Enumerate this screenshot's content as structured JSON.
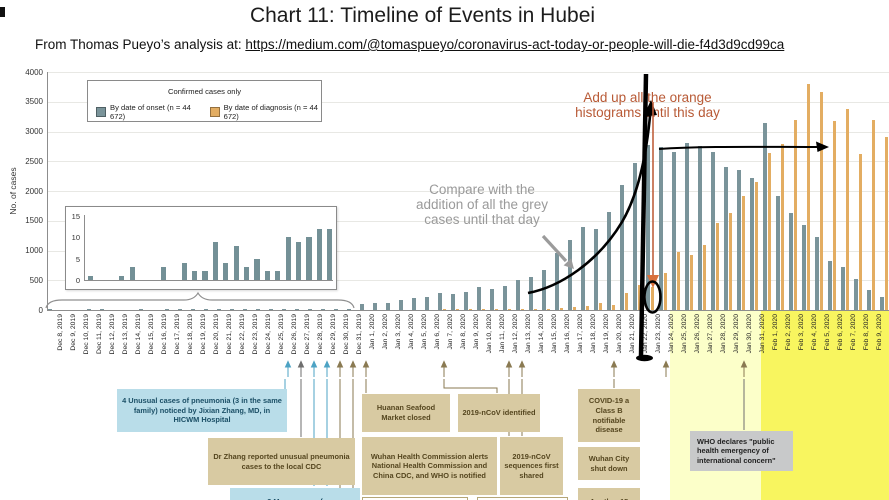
{
  "header": {
    "title": "Chart 11: Timeline of Events in Hubei",
    "subtitle_prefix": "From Thomas Pueyo’s analysis at: ",
    "link": "https://medium.com/@tomaspueyo/coronavirus-act-today-or-people-will-die-f4d3d9cd99ca"
  },
  "chart_data": {
    "type": "bar",
    "title": "Chart 11: Timeline of Events in Hubei",
    "legend_title": "Confirmed cases only",
    "ylabel": "No. of cases",
    "ylim": [
      0,
      4000
    ],
    "yticks": [
      0,
      500,
      1000,
      1500,
      2000,
      2500,
      3000,
      3500,
      4000
    ],
    "grid": "horizontal",
    "legend_position": "top-left box",
    "categories": [
      "Dec 8, 2019",
      "Dec 9, 2019",
      "Dec 10, 2019",
      "Dec 11, 2019",
      "Dec 12, 2019",
      "Dec 13, 2019",
      "Dec 14, 2019",
      "Dec 15, 2019",
      "Dec 16, 2019",
      "Dec 17, 2019",
      "Dec 18, 2019",
      "Dec 19, 2019",
      "Dec 20, 2019",
      "Dec 21, 2019",
      "Dec 22, 2019",
      "Dec 23, 2019",
      "Dec 24, 2019",
      "Dec 25, 2019",
      "Dec 26, 2019",
      "Dec 27, 2019",
      "Dec 28, 2019",
      "Dec 29, 2019",
      "Dec 30, 2019",
      "Dec 31, 2019",
      "Jan 1, 2020",
      "Jan 2, 2020",
      "Jan 3, 2020",
      "Jan 4, 2020",
      "Jan 5, 2020",
      "Jan 6, 2020",
      "Jan 7, 2020",
      "Jan 8, 2020",
      "Jan 9, 2020",
      "Jan 10, 2020",
      "Jan 11, 2020",
      "Jan 12, 2020",
      "Jan 13, 2020",
      "Jan 14, 2020",
      "Jan 15, 2020",
      "Jan 16, 2020",
      "Jan 17, 2020",
      "Jan 18, 2020",
      "Jan 19, 2020",
      "Jan 20, 2020",
      "Jan 21, 2020",
      "Jan 22, 2020",
      "Jan 23, 2020",
      "Jan 24, 2020",
      "Jan 25, 2020",
      "Jan 26, 2020",
      "Jan 27, 2020",
      "Jan 28, 2020",
      "Jan 29, 2020",
      "Jan 30, 2020",
      "Jan 31, 2020",
      "Feb 1, 2020",
      "Feb 2, 2020",
      "Feb 3, 2020",
      "Feb 4, 2020",
      "Feb 5, 2020",
      "Feb 6, 2020",
      "Feb 7, 2020",
      "Feb 8, 2020",
      "Feb 9, 2020",
      "Feb 10, 2020"
    ],
    "series": [
      {
        "name": "By date of onset (n = 44 672)",
        "color": "#7a949a",
        "values": [
          1,
          0,
          0,
          1,
          3,
          0,
          0,
          3,
          0,
          4,
          2,
          2,
          9,
          4,
          8,
          3,
          5,
          2,
          2,
          10,
          9,
          10,
          12,
          12,
          100,
          120,
          125,
          170,
          195,
          215,
          280,
          270,
          310,
          380,
          355,
          405,
          505,
          560,
          670,
          965,
          1175,
          1400,
          1360,
          1650,
          2100,
          2475,
          2770,
          2735,
          2660,
          2800,
          2760,
          2650,
          2410,
          2355,
          2225,
          3150,
          1915,
          1630,
          1435,
          1225,
          825,
          725,
          525,
          330,
          220
        ]
      },
      {
        "name": "By date of diagnosis (n = 44 672)",
        "color": "#e3ad62",
        "values": [
          0,
          0,
          0,
          0,
          0,
          0,
          0,
          0,
          0,
          0,
          0,
          0,
          0,
          0,
          0,
          0,
          0,
          0,
          0,
          0,
          0,
          0,
          0,
          0,
          0,
          0,
          0,
          0,
          0,
          0,
          5,
          5,
          5,
          10,
          10,
          15,
          15,
          20,
          25,
          35,
          45,
          65,
          110,
          85,
          280,
          420,
          390,
          630,
          975,
          920,
          1090,
          1460,
          1625,
          1915,
          2145,
          2645,
          2785,
          3200,
          3790,
          3660,
          3180,
          3385,
          2630,
          3200,
          2910
        ]
      }
    ],
    "inset": {
      "description": "magnified early-outbreak onset bars",
      "yticks": [
        0,
        5,
        10,
        15
      ],
      "categories": [
        "Dec 8, 2019",
        "Dec 9, 2019",
        "Dec 10, 2019",
        "Dec 11, 2019",
        "Dec 12, 2019",
        "Dec 13, 2019",
        "Dec 14, 2019",
        "Dec 15, 2019",
        "Dec 16, 2019",
        "Dec 17, 2019",
        "Dec 18, 2019",
        "Dec 19, 2019",
        "Dec 20, 2019",
        "Dec 21, 2019",
        "Dec 22, 2019",
        "Dec 23, 2019",
        "Dec 24, 2019",
        "Dec 25, 2019",
        "Dec 26, 2019",
        "Dec 27, 2019",
        "Dec 28, 2019",
        "Dec 29, 2019",
        "Dec 30, 2019",
        "Dec 31, 2019"
      ],
      "values": [
        1,
        0,
        0,
        1,
        3,
        0,
        0,
        3,
        0,
        4,
        2,
        2,
        9,
        4,
        8,
        3,
        5,
        2,
        2,
        10,
        9,
        10,
        12,
        12
      ]
    },
    "highlight_bands": [
      {
        "from": "Jan 25, 2020",
        "to": "Jan 31, 2020",
        "color": "#fcffc9"
      },
      {
        "from": "Feb 1, 2020",
        "to": "Feb 10, 2020",
        "color": "#f8f55f"
      }
    ],
    "marker_line_date": "Jan 23, 2020"
  },
  "legend": {
    "title": "Confirmed cases only",
    "onset": "By date of onset (n = 44 672)",
    "diagnosis": "By date of diagnosis (n = 44 672)"
  },
  "annotations": {
    "compare_grey": "Compare with the\naddition of all the grey\ncases until that day",
    "add_orange": "Add up all the orange\nhistograms until this day"
  },
  "events": {
    "unusual_cases": "4 Unusual cases of pneumonia (3 in the same family) noticed by Jixian Zhang, MD, in HICWM Hospital",
    "dr_zhang": "Dr Zhang reported unusual pneumonia cases to the local CDC",
    "more_cases": "3 More cases of",
    "huanan": "Huanan Seafood Market closed",
    "ncov_identified": "2019-nCoV identified",
    "whc_alerts": "Wuhan Health Commission alerts National Health Commission and China CDC, and WHO is notified",
    "sequences_shared": "2019-nCoV sequences first shared",
    "class_b": "COVID-19 a Class B notifiable disease",
    "wuhan_shutdown": "Wuhan City shut down",
    "another_15": "Another 15",
    "who_phe": "WHO declares \"public health emergency of international concern\""
  }
}
